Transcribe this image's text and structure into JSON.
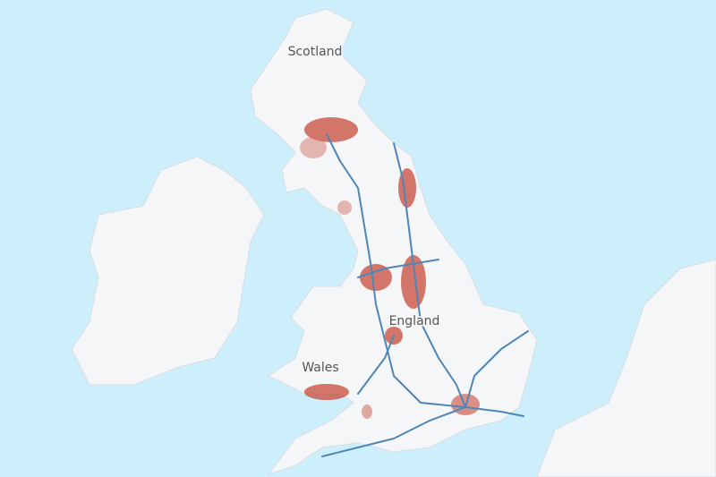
{
  "labels": {
    "scotland": "Scotland",
    "england": "England",
    "wales": "Wales"
  }
}
